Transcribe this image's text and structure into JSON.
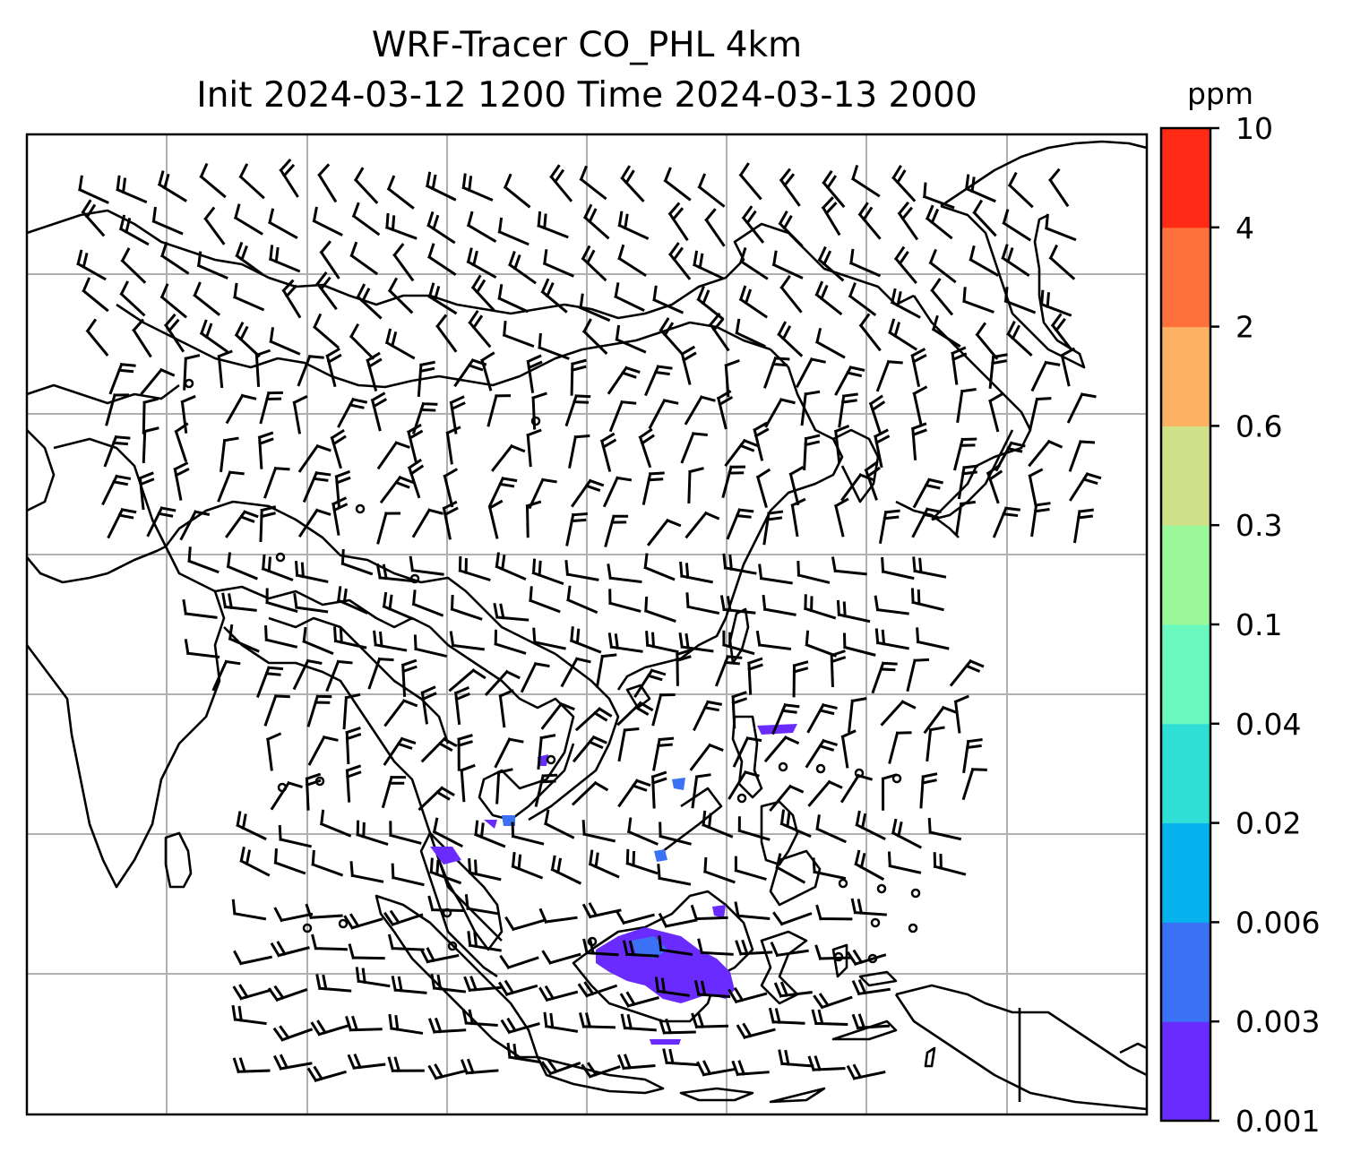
{
  "title": {
    "line1": "WRF-Tracer CO_PHL 4km",
    "line2": "Init 2024-03-12 1200 Time 2024-03-13 2000"
  },
  "colorbar": {
    "unit": "ppm",
    "levels": [
      "0.001",
      "0.003",
      "0.006",
      "0.02",
      "0.04",
      "0.1",
      "0.3",
      "0.6",
      "2",
      "4",
      "10"
    ],
    "colors": [
      "#6a2bff",
      "#3b72f5",
      "#05b2ee",
      "#2fdfd6",
      "#69f9bf",
      "#9bf99a",
      "#d0e189",
      "#fdb162",
      "#ff703d",
      "#ff2a15"
    ]
  },
  "map": {
    "coastline_color": "#000000",
    "gridline_color": "#b0b0b0",
    "barb_color": "#000000",
    "gridlines": true
  }
}
